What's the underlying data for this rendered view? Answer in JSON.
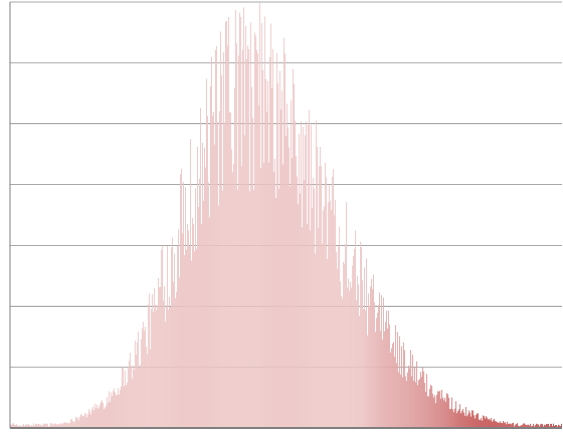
{
  "chart_data": {
    "type": "bar",
    "title": "",
    "xlabel": "",
    "ylabel": "",
    "x_range": [
      0,
      549
    ],
    "ylim": [
      0,
      60
    ],
    "grid": true,
    "legend": "none",
    "colors": {
      "bar_light": "#ecc4c4",
      "bar_dark": "#c04848",
      "grid": "#8a8a8a",
      "axis": "#7f7f7f",
      "background": "#ffffff"
    },
    "shape": {
      "bin_count": 549,
      "mode_bin": 232,
      "peak_value": 60,
      "left_spread": 62,
      "right_spread": 90,
      "tail_start_value": 0.5,
      "dark_start_bin": 350,
      "dark_end_bin": 480
    }
  }
}
